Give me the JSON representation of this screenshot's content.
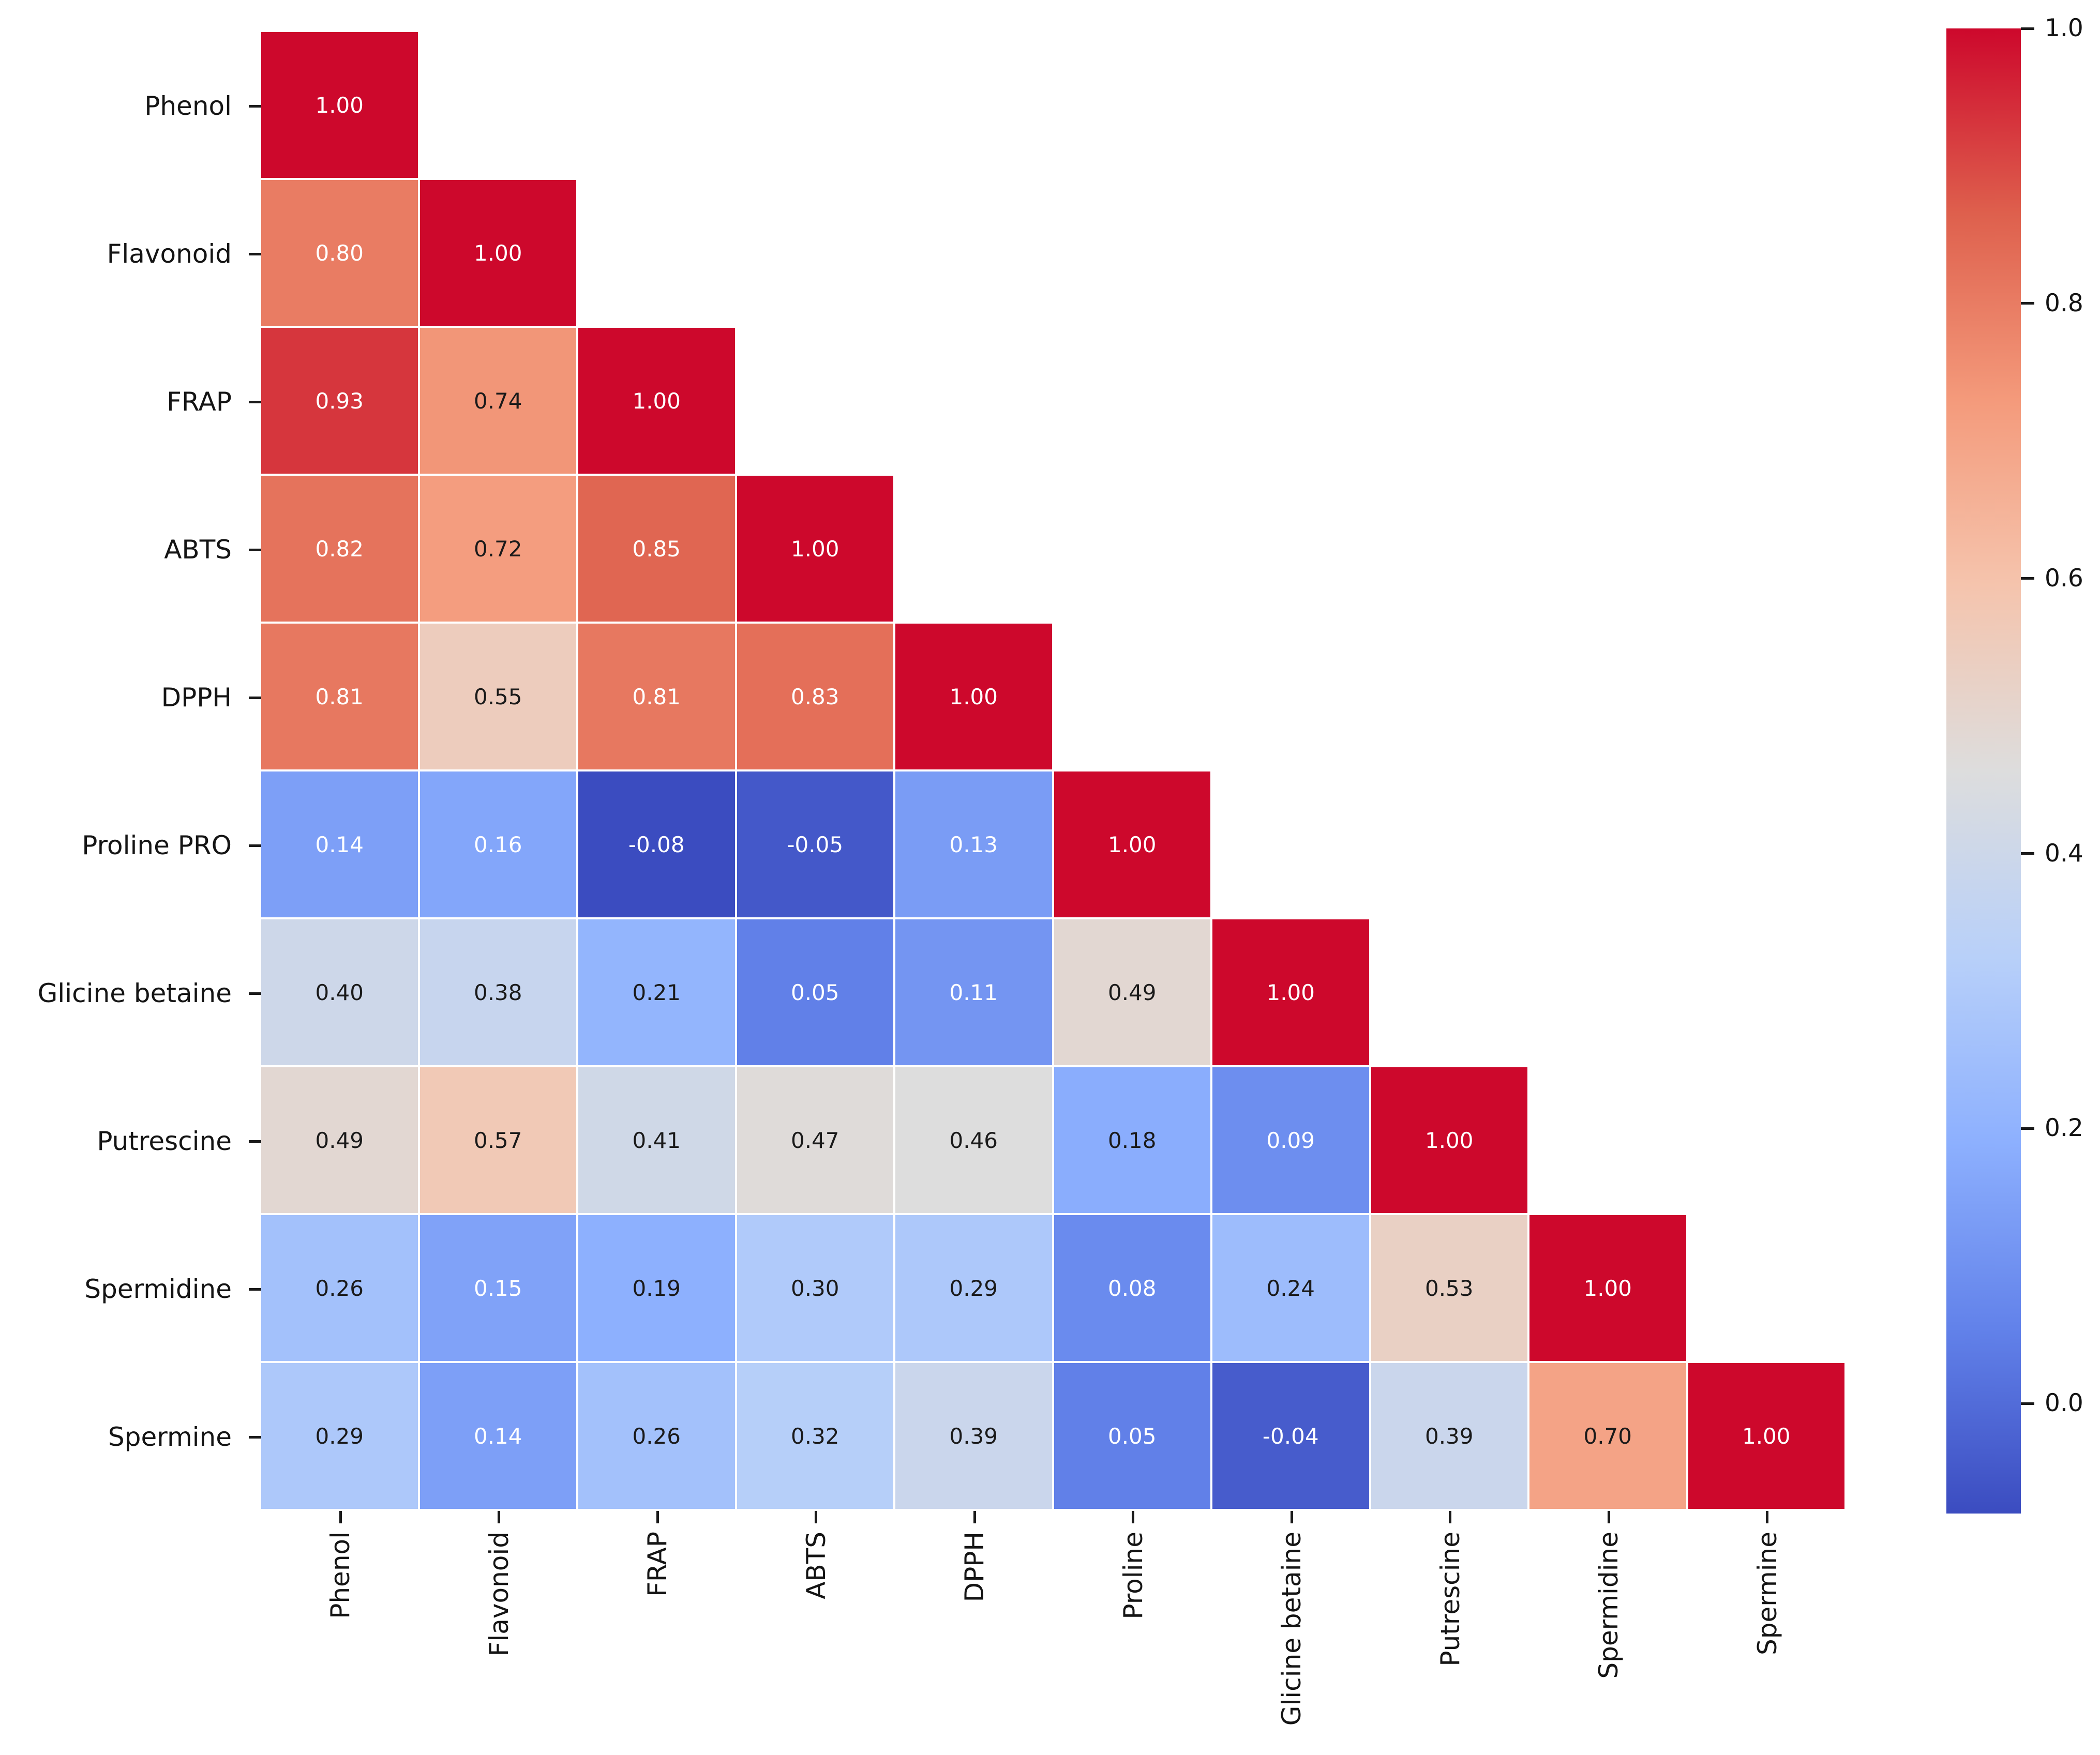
{
  "chart_data": {
    "type": "heatmap",
    "subtype": "correlation-matrix-lower-triangle",
    "grid": true,
    "legend_position": "right-colorbar",
    "y_labels": [
      "Phenol",
      "Flavonoid",
      "FRAP",
      "ABTS",
      "DPPH",
      "Proline PRO",
      "Glicine betaine",
      "Putrescine",
      "Spermidine",
      "Spermine"
    ],
    "x_labels": [
      "Phenol",
      "Flavonoid",
      "FRAP",
      "ABTS",
      "DPPH",
      "Proline",
      "Glicine betaine",
      "Putrescine",
      "Spermidine",
      "Spermine"
    ],
    "matrix": [
      [
        1.0
      ],
      [
        0.8,
        1.0
      ],
      [
        0.93,
        0.74,
        1.0
      ],
      [
        0.82,
        0.72,
        0.85,
        1.0
      ],
      [
        0.81,
        0.55,
        0.81,
        0.83,
        1.0
      ],
      [
        0.14,
        0.16,
        -0.08,
        -0.05,
        0.13,
        1.0
      ],
      [
        0.4,
        0.38,
        0.21,
        0.05,
        0.11,
        0.49,
        1.0
      ],
      [
        0.49,
        0.57,
        0.41,
        0.47,
        0.46,
        0.18,
        0.09,
        1.0
      ],
      [
        0.26,
        0.15,
        0.19,
        0.3,
        0.29,
        0.08,
        0.24,
        0.53,
        1.0
      ],
      [
        0.29,
        0.14,
        0.26,
        0.32,
        0.39,
        0.05,
        -0.04,
        0.39,
        0.7,
        1.0
      ]
    ],
    "annot_text_colors": [
      [
        "w"
      ],
      [
        "w",
        "w"
      ],
      [
        "w",
        "b",
        "w"
      ],
      [
        "w",
        "b",
        "w",
        "w"
      ],
      [
        "w",
        "b",
        "w",
        "w",
        "w"
      ],
      [
        "w",
        "w",
        "w",
        "w",
        "w",
        "w"
      ],
      [
        "b",
        "b",
        "b",
        "w",
        "w",
        "b",
        "w"
      ],
      [
        "b",
        "b",
        "b",
        "b",
        "b",
        "b",
        "w",
        "w"
      ],
      [
        "b",
        "w",
        "b",
        "b",
        "b",
        "w",
        "b",
        "b",
        "w"
      ],
      [
        "b",
        "w",
        "b",
        "b",
        "b",
        "w",
        "w",
        "b",
        "b",
        "w"
      ]
    ],
    "value_format_decimals": 2,
    "vmin": -0.08,
    "vmax": 1.0,
    "colorbar_ticks": [
      "1.0",
      "0.8",
      "0.6",
      "0.4",
      "0.2",
      "0.0"
    ],
    "colorbar_tick_values": [
      1.0,
      0.8,
      0.6,
      0.4,
      0.2,
      0.0
    ],
    "colormap": {
      "name": "coolwarm",
      "low_color": "#3b4cc0",
      "mid_color": "#dddddd",
      "high_color": "#cd082c",
      "anchors": [
        [
          0.0,
          59,
          76,
          192
        ],
        [
          0.125,
          98,
          130,
          234
        ],
        [
          0.25,
          141,
          176,
          254
        ],
        [
          0.375,
          184,
          208,
          249
        ],
        [
          0.5,
          221,
          221,
          221
        ],
        [
          0.625,
          245,
          196,
          173
        ],
        [
          0.75,
          244,
          154,
          123
        ],
        [
          0.875,
          222,
          96,
          77
        ],
        [
          1.0,
          205,
          8,
          44
        ]
      ]
    },
    "annot_white_color": "#ffffff",
    "annot_black_color": "#1a1a1a"
  }
}
